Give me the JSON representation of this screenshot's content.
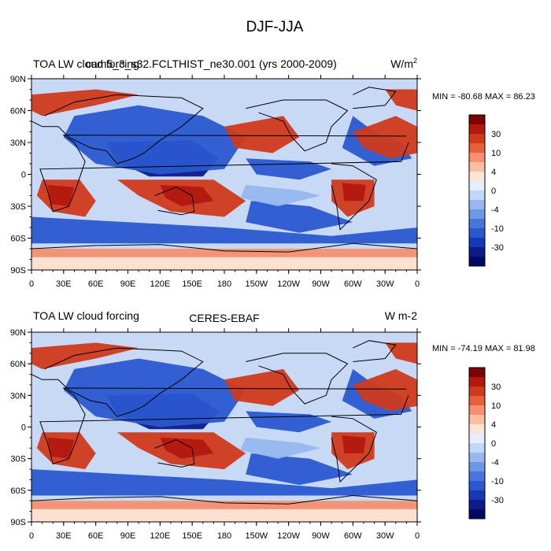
{
  "figure_title": "DJF-JJA",
  "colorbar_levels": [
    "30",
    "10",
    "4",
    "0",
    "-4",
    "-10",
    "-30"
  ],
  "colorbar_colors": [
    "#7f0000",
    "#b2180e",
    "#d03a1c",
    "#e8603a",
    "#f59070",
    "#fbbfa0",
    "#fde4d4",
    "#e4eefc",
    "#c2d7f7",
    "#97b8ef",
    "#6e97e6",
    "#4875dc",
    "#2a58d0",
    "#1638b8",
    "#0c1a8a",
    "#000a66"
  ],
  "map_colors": {
    "ocean_neutral": "#c8d9f5",
    "deep_blue": "#0c1a8a",
    "blue": "#2a58d0",
    "light_blue": "#97b8ef",
    "deep_red": "#b2180e",
    "red": "#d03a1c",
    "light_red": "#f59070",
    "peach": "#fde4d4",
    "coast": "#000000"
  },
  "chart_data": [
    {
      "type": "heatmap",
      "id": "top",
      "title_left": "TOA LW cloud forcing",
      "title_center": "cam5_3_s32.FCLTHIST_ne30.001 (yrs 2000-2009)",
      "title_right": "W/m",
      "title_right_sup": "2",
      "min_max_label": "MIN = -80.68 MAX =  86.23",
      "min": -80.68,
      "max": 86.23,
      "xlabel": "",
      "ylabel": "",
      "x_ticks": [
        "0",
        "30E",
        "60E",
        "90E",
        "120E",
        "150E",
        "180",
        "150W",
        "120W",
        "90W",
        "60W",
        "30W",
        "0"
      ],
      "y_ticks": [
        "90N",
        "60N",
        "30N",
        "0",
        "30S",
        "60S",
        "90S"
      ],
      "xlim": [
        0,
        360
      ],
      "ylim": [
        -90,
        90
      ]
    },
    {
      "type": "heatmap",
      "id": "bottom",
      "title_left": "TOA LW cloud forcing",
      "title_center": "CERES-EBAF",
      "title_right": "W m-2",
      "title_right_sup": "",
      "min_max_label": "MIN = -74.19 MAX =  81.98",
      "min": -74.19,
      "max": 81.98,
      "xlabel": "",
      "ylabel": "",
      "x_ticks": [
        "0",
        "30E",
        "60E",
        "90E",
        "120E",
        "150E",
        "180",
        "150W",
        "120W",
        "90W",
        "60W",
        "30W",
        "0"
      ],
      "y_ticks": [
        "90N",
        "60N",
        "30N",
        "0",
        "30S",
        "60S",
        "90S"
      ],
      "xlim": [
        0,
        360
      ],
      "ylim": [
        -90,
        90
      ]
    }
  ]
}
